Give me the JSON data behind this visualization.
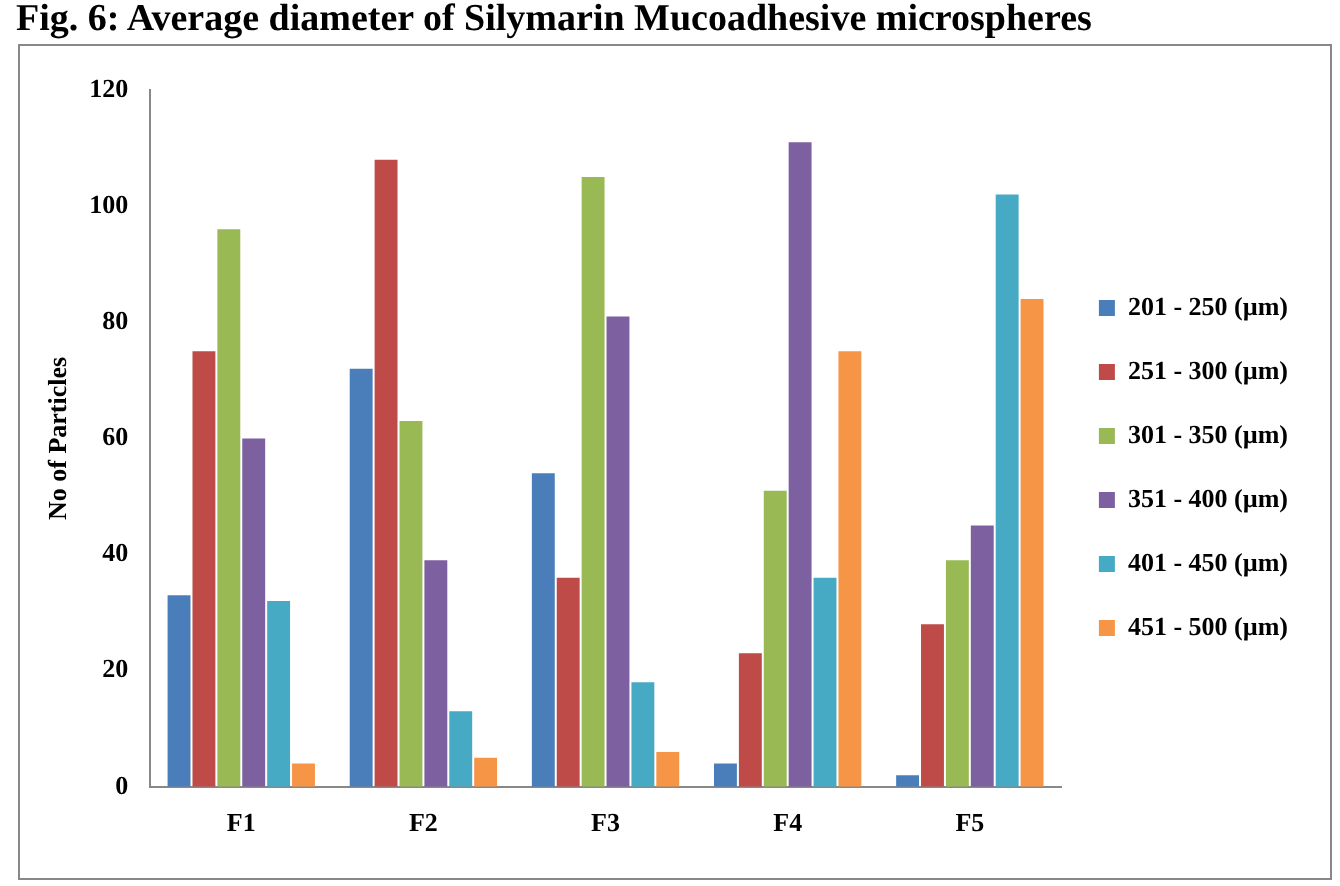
{
  "chart_data": {
    "type": "bar",
    "title": "Fig. 6: Average diameter of Silymarin Mucoadhesive microspheres",
    "ylabel": "No of Particles",
    "categories": [
      "F1",
      "F2",
      "F3",
      "F4",
      "F5"
    ],
    "series": [
      {
        "name": "201 - 250 (µm)",
        "color": "#4a7ebb",
        "values": [
          33,
          72,
          54,
          4,
          2
        ]
      },
      {
        "name": "251 - 300 (µm)",
        "color": "#be4b48",
        "values": [
          75,
          108,
          36,
          23,
          28
        ]
      },
      {
        "name": "301 - 350 (µm)",
        "color": "#98b954",
        "values": [
          96,
          63,
          105,
          51,
          39
        ]
      },
      {
        "name": "351 - 400 (µm)",
        "color": "#7d60a0",
        "values": [
          60,
          39,
          81,
          111,
          45
        ]
      },
      {
        "name": "401 - 450 (µm)",
        "color": "#46aac5",
        "values": [
          32,
          13,
          18,
          36,
          102
        ]
      },
      {
        "name": "451 - 500 (µm)",
        "color": "#f69546",
        "values": [
          4,
          5,
          6,
          75,
          84
        ]
      }
    ],
    "ylim": [
      0,
      120
    ],
    "yticks": [
      0,
      20,
      40,
      60,
      80,
      100,
      120
    ],
    "grid": false,
    "legend": "right"
  }
}
